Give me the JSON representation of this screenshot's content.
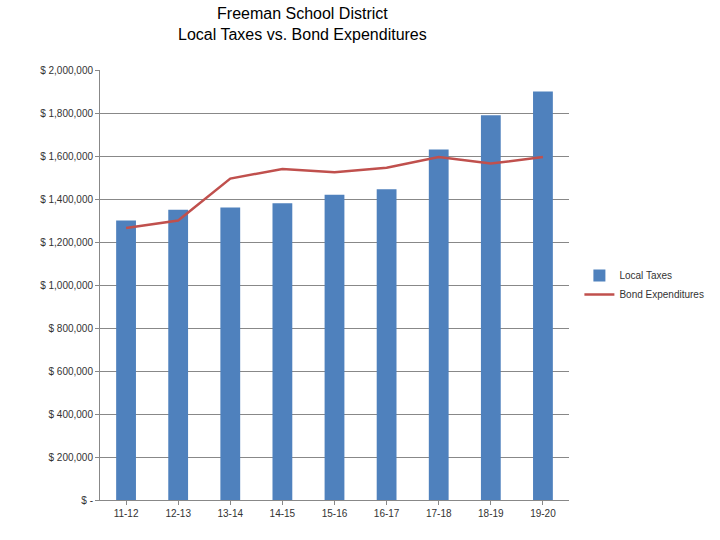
{
  "chart_data": {
    "type": "bar",
    "title": "Freeman School District\nLocal Taxes vs. Bond Expenditures",
    "categories": [
      "11-12",
      "12-13",
      "13-14",
      "14-15",
      "15-16",
      "16-17",
      "17-18",
      "18-19",
      "19-20"
    ],
    "series": [
      {
        "name": "Local Taxes",
        "type": "bar",
        "color": "#4f81bd",
        "values": [
          1300000,
          1350000,
          1360000,
          1380000,
          1420000,
          1445000,
          1630000,
          1790000,
          1900000
        ]
      },
      {
        "name": "Bond Expenditures",
        "type": "line",
        "color": "#c0504d",
        "values": [
          1265000,
          1300000,
          1495000,
          1540000,
          1525000,
          1545000,
          1595000,
          1565000,
          1595000
        ]
      }
    ],
    "ylim": [
      0,
      2000000
    ],
    "yticks": [
      {
        "value": 0,
        "label": "$ -"
      },
      {
        "value": 200000,
        "label": "$ 200,000"
      },
      {
        "value": 400000,
        "label": "$ 400,000"
      },
      {
        "value": 600000,
        "label": "$ 600,000"
      },
      {
        "value": 800000,
        "label": "$ 800,000"
      },
      {
        "value": 1000000,
        "label": "$ 1,000,000"
      },
      {
        "value": 1200000,
        "label": "$ 1,200,000"
      },
      {
        "value": 1400000,
        "label": "$ 1,400,000"
      },
      {
        "value": 1600000,
        "label": "$ 1,600,000"
      },
      {
        "value": 1800000,
        "label": "$ 1,800,000"
      },
      {
        "value": 2000000,
        "label": "$ 2,000,000"
      }
    ],
    "grid": true,
    "legend": "right"
  }
}
